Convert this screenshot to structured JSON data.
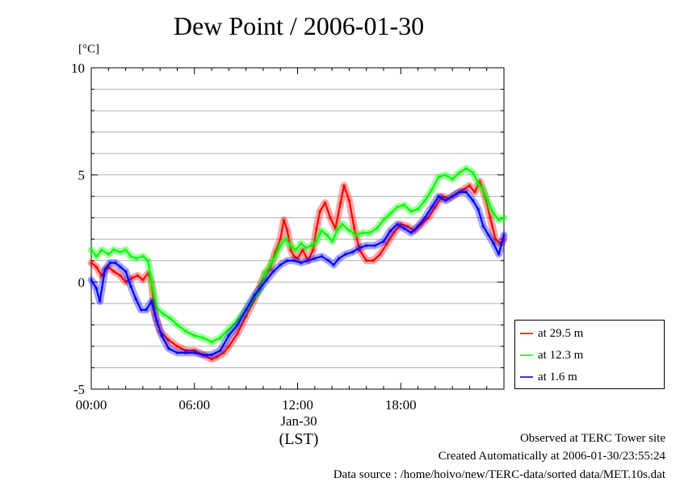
{
  "title": "Dew Point / 2006-01-30",
  "unit_label": "[°C]",
  "x_date_label": "Jan-30",
  "x_axis_label": "(LST)",
  "footer": {
    "observed": "Observed at TERC Tower site",
    "created": "Created Automatically at 2006-01-30/23:55:24",
    "source": "Data source : /home/hoivo/new/TERC-data/sorted  data/MET.10s.dat"
  },
  "chart_data": {
    "type": "line",
    "title": "Dew Point / 2006-01-30",
    "ylabel": "[°C]",
    "xlabel": "(LST)",
    "xlim": [
      0,
      24
    ],
    "ylim": [
      -5,
      10
    ],
    "x_ticks": [
      0,
      6,
      12,
      18
    ],
    "x_tick_labels": [
      "00:00",
      "06:00",
      "12:00",
      "18:00"
    ],
    "y_ticks": [
      -5,
      0,
      5,
      10
    ],
    "y_tick_labels": [
      "-5",
      "0",
      "5",
      "10"
    ],
    "grid": true,
    "legend_position": "right",
    "series": [
      {
        "name": "at 29.5 m",
        "color": "#ff0000",
        "points": [
          [
            0.0,
            0.9
          ],
          [
            0.3,
            0.7
          ],
          [
            0.6,
            0.3
          ],
          [
            1.0,
            0.7
          ],
          [
            1.3,
            0.5
          ],
          [
            1.7,
            0.3
          ],
          [
            2.0,
            0.0
          ],
          [
            2.4,
            0.2
          ],
          [
            2.7,
            0.3
          ],
          [
            3.0,
            0.1
          ],
          [
            3.3,
            0.4
          ],
          [
            3.5,
            0.0
          ],
          [
            3.7,
            -1.5
          ],
          [
            4.0,
            -2.3
          ],
          [
            4.5,
            -2.7
          ],
          [
            5.0,
            -3.0
          ],
          [
            5.5,
            -3.2
          ],
          [
            6.0,
            -3.2
          ],
          [
            6.5,
            -3.4
          ],
          [
            7.0,
            -3.6
          ],
          [
            7.3,
            -3.5
          ],
          [
            7.7,
            -3.3
          ],
          [
            8.0,
            -3.0
          ],
          [
            8.5,
            -2.4
          ],
          [
            9.0,
            -1.6
          ],
          [
            9.5,
            -0.8
          ],
          [
            9.8,
            -0.2
          ],
          [
            10.1,
            0.4
          ],
          [
            10.4,
            0.6
          ],
          [
            10.7,
            1.4
          ],
          [
            11.0,
            2.0
          ],
          [
            11.2,
            2.9
          ],
          [
            11.4,
            2.4
          ],
          [
            11.6,
            1.5
          ],
          [
            11.8,
            1.2
          ],
          [
            12.0,
            1.1
          ],
          [
            12.3,
            1.5
          ],
          [
            12.6,
            1.0
          ],
          [
            12.9,
            1.5
          ],
          [
            13.1,
            2.5
          ],
          [
            13.3,
            3.3
          ],
          [
            13.6,
            3.7
          ],
          [
            13.9,
            3.0
          ],
          [
            14.2,
            2.5
          ],
          [
            14.5,
            3.7
          ],
          [
            14.7,
            4.5
          ],
          [
            15.0,
            3.8
          ],
          [
            15.3,
            2.5
          ],
          [
            15.6,
            1.5
          ],
          [
            16.0,
            1.0
          ],
          [
            16.4,
            1.0
          ],
          [
            16.8,
            1.3
          ],
          [
            17.2,
            1.8
          ],
          [
            17.6,
            2.3
          ],
          [
            18.0,
            2.7
          ],
          [
            18.4,
            2.6
          ],
          [
            18.8,
            2.4
          ],
          [
            19.2,
            2.7
          ],
          [
            19.6,
            3.0
          ],
          [
            20.0,
            3.5
          ],
          [
            20.4,
            4.0
          ],
          [
            20.8,
            3.9
          ],
          [
            21.2,
            4.1
          ],
          [
            21.6,
            4.3
          ],
          [
            22.0,
            4.5
          ],
          [
            22.3,
            4.2
          ],
          [
            22.6,
            4.7
          ],
          [
            22.9,
            4.0
          ],
          [
            23.2,
            3.0
          ],
          [
            23.5,
            2.0
          ],
          [
            23.8,
            1.8
          ],
          [
            24.0,
            2.0
          ]
        ]
      },
      {
        "name": "at 12.3 m",
        "color": "#00ff00",
        "points": [
          [
            0.0,
            1.5
          ],
          [
            0.3,
            1.2
          ],
          [
            0.6,
            1.5
          ],
          [
            1.0,
            1.3
          ],
          [
            1.3,
            1.5
          ],
          [
            1.7,
            1.4
          ],
          [
            2.0,
            1.5
          ],
          [
            2.3,
            1.2
          ],
          [
            2.6,
            1.1
          ],
          [
            3.0,
            1.2
          ],
          [
            3.3,
            1.0
          ],
          [
            3.5,
            0.0
          ],
          [
            3.8,
            -1.2
          ],
          [
            4.2,
            -1.5
          ],
          [
            4.6,
            -1.7
          ],
          [
            5.0,
            -2.0
          ],
          [
            5.5,
            -2.3
          ],
          [
            6.0,
            -2.5
          ],
          [
            6.5,
            -2.6
          ],
          [
            7.0,
            -2.8
          ],
          [
            7.5,
            -2.6
          ],
          [
            8.0,
            -2.2
          ],
          [
            8.5,
            -1.8
          ],
          [
            9.0,
            -1.3
          ],
          [
            9.5,
            -0.7
          ],
          [
            9.8,
            -0.4
          ],
          [
            10.1,
            0.4
          ],
          [
            10.4,
            0.8
          ],
          [
            10.7,
            1.2
          ],
          [
            11.0,
            1.7
          ],
          [
            11.3,
            2.0
          ],
          [
            11.6,
            1.7
          ],
          [
            11.9,
            1.5
          ],
          [
            12.2,
            1.8
          ],
          [
            12.5,
            1.6
          ],
          [
            12.8,
            1.7
          ],
          [
            13.1,
            1.9
          ],
          [
            13.4,
            2.4
          ],
          [
            13.7,
            2.2
          ],
          [
            14.0,
            1.9
          ],
          [
            14.3,
            2.4
          ],
          [
            14.6,
            2.7
          ],
          [
            15.0,
            2.4
          ],
          [
            15.4,
            2.2
          ],
          [
            15.8,
            2.3
          ],
          [
            16.2,
            2.3
          ],
          [
            16.6,
            2.5
          ],
          [
            17.0,
            2.9
          ],
          [
            17.4,
            3.2
          ],
          [
            17.8,
            3.5
          ],
          [
            18.2,
            3.6
          ],
          [
            18.6,
            3.3
          ],
          [
            19.0,
            3.4
          ],
          [
            19.4,
            3.8
          ],
          [
            19.8,
            4.3
          ],
          [
            20.2,
            4.9
          ],
          [
            20.6,
            5.0
          ],
          [
            21.0,
            4.8
          ],
          [
            21.4,
            5.1
          ],
          [
            21.8,
            5.3
          ],
          [
            22.2,
            5.1
          ],
          [
            22.5,
            4.6
          ],
          [
            22.8,
            4.3
          ],
          [
            23.1,
            3.7
          ],
          [
            23.4,
            3.2
          ],
          [
            23.7,
            2.9
          ],
          [
            24.0,
            3.0
          ]
        ]
      },
      {
        "name": "at 1.6 m",
        "color": "#0000ff",
        "points": [
          [
            0.0,
            0.1
          ],
          [
            0.3,
            -0.3
          ],
          [
            0.5,
            -0.9
          ],
          [
            0.8,
            0.6
          ],
          [
            1.1,
            0.9
          ],
          [
            1.4,
            0.9
          ],
          [
            1.7,
            0.7
          ],
          [
            2.0,
            0.5
          ],
          [
            2.3,
            -0.2
          ],
          [
            2.6,
            -0.8
          ],
          [
            2.9,
            -1.3
          ],
          [
            3.2,
            -1.3
          ],
          [
            3.5,
            -0.9
          ],
          [
            3.8,
            -1.8
          ],
          [
            4.1,
            -2.5
          ],
          [
            4.5,
            -3.1
          ],
          [
            5.0,
            -3.3
          ],
          [
            5.5,
            -3.3
          ],
          [
            6.0,
            -3.3
          ],
          [
            6.5,
            -3.4
          ],
          [
            7.0,
            -3.4
          ],
          [
            7.5,
            -3.2
          ],
          [
            8.0,
            -2.5
          ],
          [
            8.5,
            -2.0
          ],
          [
            9.0,
            -1.3
          ],
          [
            9.5,
            -0.6
          ],
          [
            9.8,
            -0.3
          ],
          [
            10.2,
            0.1
          ],
          [
            10.6,
            0.5
          ],
          [
            11.0,
            0.8
          ],
          [
            11.4,
            1.0
          ],
          [
            11.8,
            1.0
          ],
          [
            12.2,
            0.9
          ],
          [
            12.6,
            1.0
          ],
          [
            13.0,
            1.1
          ],
          [
            13.4,
            1.2
          ],
          [
            13.8,
            1.0
          ],
          [
            14.1,
            0.8
          ],
          [
            14.4,
            1.1
          ],
          [
            14.8,
            1.3
          ],
          [
            15.2,
            1.4
          ],
          [
            15.6,
            1.6
          ],
          [
            16.0,
            1.7
          ],
          [
            16.5,
            1.7
          ],
          [
            17.0,
            1.9
          ],
          [
            17.4,
            2.4
          ],
          [
            17.8,
            2.7
          ],
          [
            18.2,
            2.5
          ],
          [
            18.6,
            2.3
          ],
          [
            19.0,
            2.6
          ],
          [
            19.4,
            3.0
          ],
          [
            19.8,
            3.5
          ],
          [
            20.2,
            4.0
          ],
          [
            20.6,
            3.8
          ],
          [
            21.0,
            4.0
          ],
          [
            21.4,
            4.2
          ],
          [
            21.8,
            4.2
          ],
          [
            22.2,
            3.8
          ],
          [
            22.5,
            3.4
          ],
          [
            22.8,
            2.6
          ],
          [
            23.1,
            2.2
          ],
          [
            23.4,
            1.8
          ],
          [
            23.7,
            1.3
          ],
          [
            24.0,
            2.2
          ]
        ]
      }
    ]
  }
}
